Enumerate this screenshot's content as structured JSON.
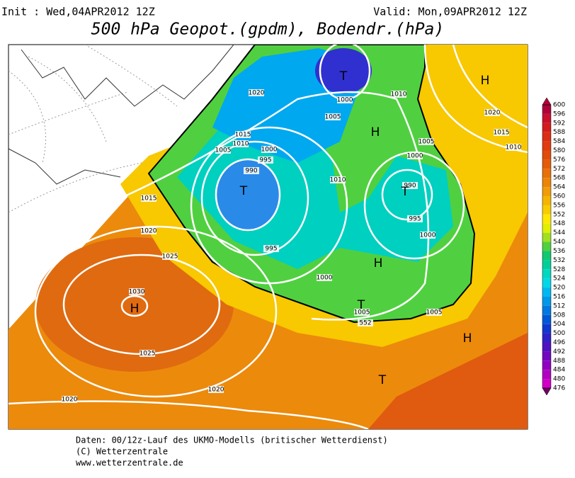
{
  "header": {
    "init": "Init : Wed,04APR2012 12Z",
    "valid": "Valid: Mon,09APR2012 12Z",
    "title": "500 hPa Geopot.(gpdm), Bodendr.(hPa)"
  },
  "map": {
    "isobar_labels": [
      1020,
      1000,
      1005,
      1010,
      1015,
      1010,
      1005,
      1000,
      995,
      990,
      1010,
      1005,
      1000,
      990,
      995,
      1000,
      995,
      1000,
      1005,
      1005,
      552,
      1015,
      1020,
      1025,
      1030,
      1025,
      1020,
      1020,
      1020,
      1015,
      1010
    ],
    "markers": [
      "T",
      "H",
      "H",
      "T",
      "T",
      "H",
      "T",
      "H",
      "H",
      "T"
    ]
  },
  "colorbar": {
    "levels": [
      600,
      596,
      592,
      588,
      584,
      580,
      576,
      572,
      568,
      564,
      560,
      556,
      552,
      548,
      544,
      540,
      536,
      532,
      528,
      524,
      520,
      516,
      512,
      508,
      504,
      500,
      496,
      492,
      488,
      484,
      480,
      476
    ],
    "colors": [
      "#b0003a",
      "#c8102e",
      "#d41c1c",
      "#dc2c14",
      "#e03c10",
      "#e04c0c",
      "#e45c08",
      "#e87008",
      "#ec8408",
      "#f09c08",
      "#f4b400",
      "#f8cc00",
      "#ffe800",
      "#e0f000",
      "#a0e020",
      "#50d040",
      "#10c870",
      "#00d098",
      "#00d8c0",
      "#00d8e8",
      "#00b8f0",
      "#0098e8",
      "#0078e0",
      "#0058d8",
      "#1038d0",
      "#3020c8",
      "#5010c0",
      "#7008c0",
      "#9000c0",
      "#b000c0",
      "#d000c8"
    ]
  },
  "footer": {
    "line1": "Daten: 00/12z-Lauf des UKMO-Modells (britischer Wetterdienst)",
    "line2": "(C) Wetterzentrale",
    "line3": "www.wetterzentrale.de"
  }
}
